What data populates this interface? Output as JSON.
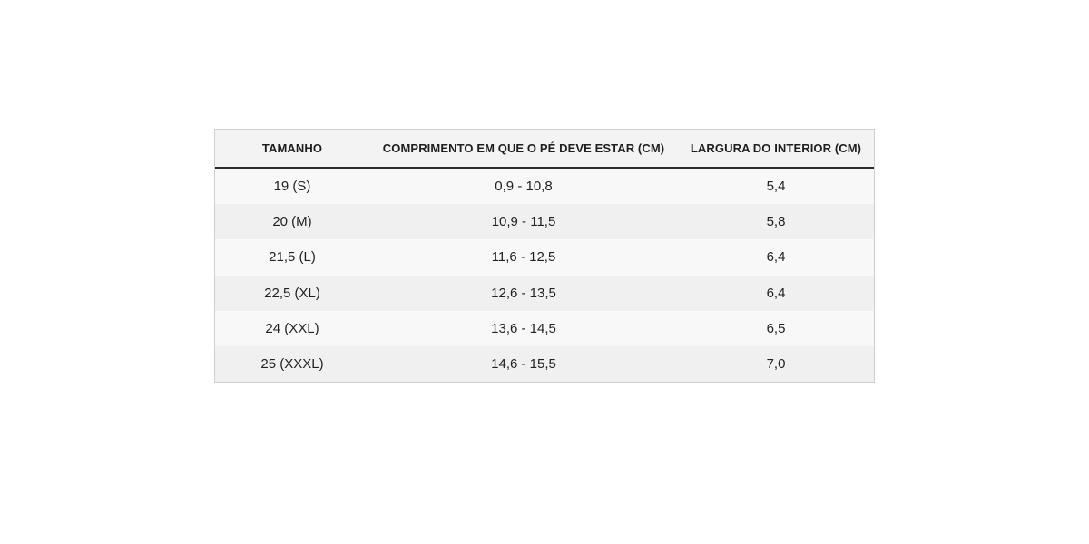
{
  "table": {
    "headers": [
      "TAMANHO",
      "COMPRIMENTO EM QUE O PÉ DEVE ESTAR (CM)",
      "LARGURA DO INTERIOR (CM)"
    ],
    "rows": [
      [
        "19 (S)",
        "0,9 - 10,8",
        "5,4"
      ],
      [
        "20 (M)",
        "10,9 - 11,5",
        "5,8"
      ],
      [
        "21,5 (L)",
        "11,6 - 12,5",
        "6,4"
      ],
      [
        "22,5 (XL)",
        "12,6 - 13,5",
        "6,4"
      ],
      [
        "24 (XXL)",
        "13,6 - 14,5",
        "6,5"
      ],
      [
        "25 (XXXL)",
        "14,6 - 15,5",
        "7,0"
      ]
    ]
  }
}
